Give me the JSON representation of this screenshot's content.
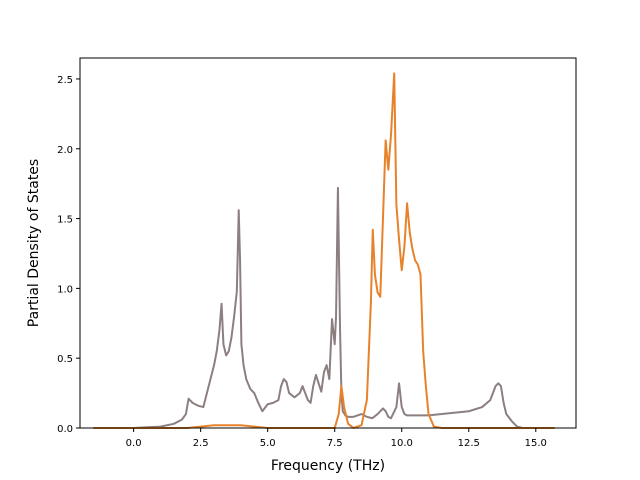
{
  "chart_data": {
    "type": "line",
    "title": "",
    "xlabel": "Frequency (THz)",
    "ylabel": "Partial Density of States",
    "xlim": [
      -2.0,
      16.5
    ],
    "ylim": [
      0.0,
      2.65
    ],
    "xticks": [
      0.0,
      2.5,
      5.0,
      7.5,
      10.0,
      12.5,
      15.0
    ],
    "xtick_labels": [
      "0.0",
      "2.5",
      "5.0",
      "7.5",
      "10.0",
      "12.5",
      "15.0"
    ],
    "yticks": [
      0.0,
      0.5,
      1.0,
      1.5,
      2.0,
      2.5
    ],
    "ytick_labels": [
      "0.0",
      "0.5",
      "1.0",
      "1.5",
      "2.0",
      "2.5"
    ],
    "grid": false,
    "legend": "none",
    "series": [
      {
        "color": "#8c7f80",
        "x": [
          -1.5,
          0.0,
          0.5,
          1.0,
          1.5,
          1.8,
          1.95,
          2.05,
          2.2,
          2.4,
          2.6,
          2.8,
          3.0,
          3.1,
          3.2,
          3.28,
          3.35,
          3.45,
          3.55,
          3.65,
          3.75,
          3.85,
          3.92,
          3.97,
          4.02,
          4.1,
          4.2,
          4.35,
          4.5,
          4.65,
          4.8,
          5.0,
          5.2,
          5.4,
          5.5,
          5.6,
          5.7,
          5.8,
          6.0,
          6.2,
          6.3,
          6.4,
          6.5,
          6.6,
          6.7,
          6.8,
          6.9,
          7.0,
          7.1,
          7.2,
          7.3,
          7.4,
          7.5,
          7.55,
          7.62,
          7.7,
          7.75,
          7.8,
          7.9,
          8.0,
          8.2,
          8.5,
          8.7,
          8.9,
          9.1,
          9.3,
          9.4,
          9.5,
          9.6,
          9.8,
          9.9,
          10.0,
          10.1,
          10.2,
          10.4,
          10.6,
          10.8,
          11.0,
          11.5,
          12.0,
          12.5,
          13.0,
          13.3,
          13.5,
          13.6,
          13.7,
          13.8,
          13.9,
          14.1,
          14.3,
          14.5,
          15.0,
          15.7
        ],
        "values": [
          0.0,
          0.0,
          0.005,
          0.01,
          0.03,
          0.06,
          0.1,
          0.21,
          0.18,
          0.16,
          0.15,
          0.3,
          0.45,
          0.55,
          0.7,
          0.89,
          0.6,
          0.52,
          0.55,
          0.65,
          0.8,
          0.98,
          1.56,
          1.2,
          0.6,
          0.45,
          0.35,
          0.28,
          0.25,
          0.18,
          0.12,
          0.17,
          0.18,
          0.2,
          0.3,
          0.35,
          0.33,
          0.25,
          0.22,
          0.25,
          0.3,
          0.25,
          0.2,
          0.18,
          0.3,
          0.38,
          0.32,
          0.26,
          0.4,
          0.45,
          0.35,
          0.78,
          0.6,
          0.8,
          1.72,
          0.7,
          0.25,
          0.12,
          0.09,
          0.08,
          0.08,
          0.1,
          0.08,
          0.07,
          0.1,
          0.14,
          0.12,
          0.08,
          0.07,
          0.15,
          0.32,
          0.15,
          0.1,
          0.09,
          0.09,
          0.09,
          0.09,
          0.09,
          0.1,
          0.11,
          0.12,
          0.15,
          0.2,
          0.3,
          0.32,
          0.3,
          0.18,
          0.1,
          0.05,
          0.01,
          0.0,
          0.0,
          0.0
        ]
      },
      {
        "color": "#e8822a",
        "x": [
          -1.5,
          0.0,
          2.0,
          2.5,
          3.0,
          3.5,
          4.0,
          4.5,
          5.0,
          6.0,
          7.0,
          7.5,
          7.65,
          7.75,
          7.85,
          8.0,
          8.2,
          8.5,
          8.7,
          8.85,
          8.92,
          9.0,
          9.1,
          9.2,
          9.3,
          9.4,
          9.5,
          9.6,
          9.72,
          9.8,
          9.9,
          10.0,
          10.1,
          10.2,
          10.3,
          10.4,
          10.5,
          10.6,
          10.7,
          10.8,
          10.9,
          11.0,
          11.2,
          11.5,
          12.5,
          14.0,
          15.7
        ],
        "values": [
          0.0,
          0.0,
          0.0,
          0.01,
          0.02,
          0.02,
          0.02,
          0.01,
          0.0,
          0.0,
          0.0,
          0.0,
          0.1,
          0.3,
          0.15,
          0.03,
          0.0,
          0.02,
          0.2,
          0.9,
          1.42,
          1.1,
          0.97,
          0.94,
          1.5,
          2.06,
          1.85,
          2.1,
          2.54,
          1.6,
          1.35,
          1.13,
          1.3,
          1.61,
          1.4,
          1.28,
          1.2,
          1.17,
          1.1,
          0.55,
          0.3,
          0.1,
          0.01,
          0.0,
          0.0,
          0.0,
          0.0
        ]
      }
    ]
  }
}
